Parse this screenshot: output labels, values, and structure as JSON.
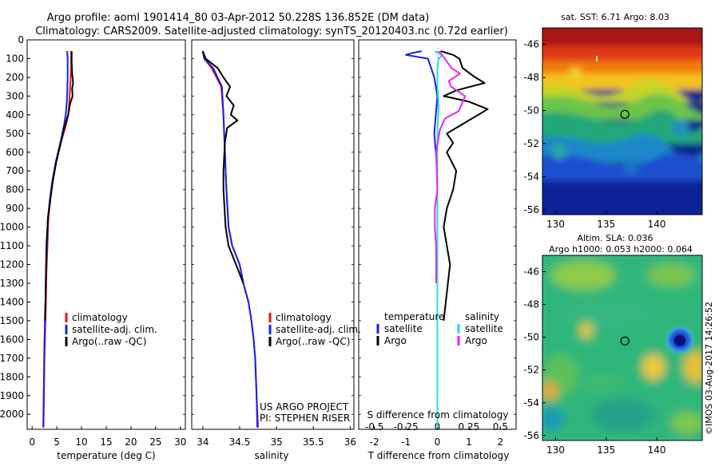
{
  "header": {
    "line1": "Argo profile: aoml 1901414_80 03-Apr-2012 50.228S 136.852E (DM data)",
    "line2": "Climatology: CARS2009. Satellite-adjusted climatology: synTS_20120403.nc (0.72d earlier)"
  },
  "colors": {
    "climatology": "#ee1111",
    "satellite": "#1122ee",
    "argo": "#000000",
    "salinity_satellite": "#22dddd",
    "salinity_argo": "#ee22ee"
  },
  "depth_axis": {
    "range": [
      0,
      2080
    ],
    "ticks": [
      "0",
      "100",
      "200",
      "300",
      "400",
      "500",
      "600",
      "700",
      "800",
      "900",
      "1000",
      "1100",
      "1200",
      "1300",
      "1400",
      "1500",
      "1600",
      "1700",
      "1800",
      "1900",
      "2000"
    ]
  },
  "panels": {
    "temperature": {
      "xlabel": "temperature (deg C)",
      "legend": [
        "climatology",
        "satellite-adj. clim.",
        "Argo(..raw -QC)"
      ]
    },
    "salinity": {
      "xlabel": "salinity",
      "legend": [
        "climatology",
        "satellite-adj. clim.",
        "Argo(..raw -QC)"
      ],
      "credits": [
        "US ARGO PROJECT",
        "PI: STEPHEN RISER"
      ]
    },
    "difference": {
      "legend_titles": [
        "temperature",
        "salinity"
      ],
      "legend_left": [
        "satellite",
        "Argo"
      ],
      "legend_right": [
        "satellite",
        "Argo"
      ],
      "top_axis_label": "S difference from climatology",
      "xlabel": "T difference from climatology"
    }
  },
  "maps": {
    "sst": {
      "title": "sat. SST: 6.71  Argo: 8.03",
      "lat_ticks": [
        "-46",
        "-48",
        "-50",
        "-52",
        "-54",
        "-56"
      ],
      "lon_ticks": [
        "130",
        "135",
        "140"
      ],
      "float_lon": 136.852,
      "float_lat": -50.228
    },
    "sla": {
      "title1": "Altim. SLA: 0.036",
      "title2": "Argo h1000: 0.053 h2000: 0.064",
      "lat_ticks": [
        "-46",
        "-48",
        "-50",
        "-52",
        "-54",
        "-56"
      ],
      "lon_ticks": [
        "130",
        "135",
        "140"
      ],
      "float_lon": 136.852,
      "float_lat": -50.228
    }
  },
  "footer": {
    "stamp": "©IMOS 03-Aug-2017 14:26:52"
  },
  "chart_data": [
    {
      "type": "line",
      "title": "",
      "xlabel": "temperature (deg C)",
      "ylabel": "",
      "xlim": [
        -1,
        31
      ],
      "ylim": [
        2080,
        0
      ],
      "xticks": [
        0,
        5,
        10,
        15,
        20,
        25,
        30
      ],
      "series": [
        {
          "name": "climatology",
          "color": "#ee1111",
          "x": [
            7.9,
            7.9,
            7.8,
            7.6,
            7.3,
            6.9,
            5.8,
            4.9,
            4.2,
            3.7,
            3.3,
            3.1,
            2.9,
            2.8,
            2.7,
            2.6,
            2.5,
            2.45,
            2.4,
            2.35,
            2.3
          ],
          "y": [
            60,
            100,
            200,
            300,
            400,
            450,
            550,
            650,
            750,
            850,
            950,
            1100,
            1250,
            1400,
            1500,
            1600,
            1700,
            1800,
            1900,
            2000,
            2070
          ]
        },
        {
          "name": "satellite-adj. clim.",
          "color": "#1122ee",
          "x": [
            7.1,
            7.2,
            7.2,
            7.1,
            6.8,
            6.5,
            5.7,
            4.8,
            4.1,
            3.6,
            3.2,
            3.0,
            2.8,
            2.7,
            2.6,
            2.5,
            2.45,
            2.4,
            2.35,
            2.3,
            2.25
          ],
          "y": [
            60,
            100,
            200,
            300,
            400,
            450,
            550,
            650,
            750,
            850,
            950,
            1100,
            1250,
            1400,
            1500,
            1600,
            1700,
            1800,
            1900,
            2000,
            2070
          ]
        },
        {
          "name": "Argo(..raw -QC)",
          "color": "#000000",
          "x": [
            8.0,
            8.0,
            8.1,
            8.3,
            8.1,
            8.2,
            7.7,
            7.3,
            6.7,
            5.8,
            4.9,
            4.2,
            3.7,
            3.2,
            2.9,
            2.8,
            2.7,
            2.6
          ],
          "y": [
            60,
            120,
            180,
            230,
            260,
            300,
            340,
            400,
            450,
            550,
            650,
            750,
            850,
            950,
            1100,
            1250,
            1400,
            1500
          ]
        }
      ]
    },
    {
      "type": "line",
      "title": "",
      "xlabel": "salinity",
      "ylabel": "",
      "xlim": [
        33.85,
        36.05
      ],
      "ylim": [
        2080,
        0
      ],
      "xticks": [
        34,
        34.5,
        35,
        35.5,
        36
      ],
      "series": [
        {
          "name": "climatology",
          "color": "#ee1111",
          "x": [
            34.0,
            34.02,
            34.12,
            34.25,
            34.28,
            34.3,
            34.32,
            34.35,
            34.4,
            34.5,
            34.55,
            34.62,
            34.66,
            34.69,
            34.71,
            34.73,
            34.75
          ],
          "y": [
            60,
            100,
            150,
            250,
            400,
            600,
            800,
            1000,
            1100,
            1200,
            1300,
            1400,
            1500,
            1600,
            1700,
            1900,
            2070
          ]
        },
        {
          "name": "satellite-adj. clim.",
          "color": "#1122ee",
          "x": [
            34.0,
            34.02,
            34.14,
            34.26,
            34.28,
            34.3,
            34.32,
            34.35,
            34.4,
            34.5,
            34.55,
            34.62,
            34.66,
            34.69,
            34.71,
            34.73,
            34.74
          ],
          "y": [
            60,
            100,
            150,
            250,
            400,
            600,
            800,
            1000,
            1100,
            1200,
            1300,
            1400,
            1500,
            1600,
            1700,
            1900,
            2070
          ]
        },
        {
          "name": "Argo(..raw -QC)",
          "color": "#000000",
          "x": [
            34.0,
            34.04,
            34.2,
            34.28,
            34.37,
            34.32,
            34.42,
            34.38,
            34.47,
            34.33,
            34.3,
            34.28,
            34.28,
            34.31,
            34.35,
            34.45,
            34.55
          ],
          "y": [
            60,
            100,
            150,
            200,
            250,
            300,
            350,
            400,
            430,
            470,
            550,
            700,
            800,
            1000,
            1100,
            1200,
            1300
          ]
        }
      ]
    },
    {
      "type": "line",
      "title": "",
      "xlabel": "T difference from climatology",
      "ylabel": "",
      "xlim": [
        -2.5,
        2.5
      ],
      "ylim": [
        2080,
        0
      ],
      "xticks": [
        -2,
        -1,
        0,
        1,
        2
      ],
      "top_xlabel": "S difference from climatology",
      "top_xlim": [
        -0.625,
        0.625
      ],
      "top_xticks": [
        -0.5,
        -0.25,
        0,
        0.25,
        0.5
      ],
      "series": [
        {
          "name": "temperature satellite",
          "color": "#1122ee",
          "axis": "T",
          "x": [
            -0.5,
            -0.8,
            -1.0,
            -0.3,
            -0.1,
            0.0,
            -0.1,
            0.0,
            0.0,
            0.0,
            0.0,
            0.0
          ],
          "y": [
            60,
            70,
            80,
            100,
            200,
            300,
            500,
            700,
            900,
            1200,
            1600,
            2070
          ]
        },
        {
          "name": "temperature Argo",
          "color": "#000000",
          "axis": "T",
          "x": [
            0.1,
            0.5,
            0.7,
            0.8,
            1.2,
            1.5,
            0.6,
            0.2,
            1.0,
            1.6,
            1.1,
            0.7,
            0.3,
            0.5,
            0.3,
            0.6,
            0.5,
            0.3,
            0.2,
            0.4,
            0.2
          ],
          "y": [
            60,
            80,
            100,
            150,
            200,
            230,
            270,
            300,
            330,
            370,
            420,
            460,
            500,
            550,
            600,
            700,
            800,
            900,
            1000,
            1200,
            1500
          ]
        },
        {
          "name": "salinity satellite",
          "color": "#22dddd",
          "axis": "S",
          "x": [
            -0.02,
            0.04,
            0.01,
            0.0,
            0.0,
            0.01,
            0.0,
            0.0,
            0.0,
            0.0,
            0.0,
            0.0
          ],
          "y": [
            60,
            80,
            100,
            150,
            250,
            350,
            500,
            700,
            900,
            1200,
            1600,
            2070
          ]
        },
        {
          "name": "salinity Argo",
          "color": "#ee22ee",
          "axis": "S",
          "x": [
            0.01,
            0.06,
            0.11,
            0.18,
            0.09,
            0.11,
            0.22,
            0.17,
            0.06,
            0.02,
            -0.01,
            0.0,
            -0.02,
            -0.02,
            -0.01,
            -0.01,
            -0.01
          ],
          "y": [
            60,
            100,
            150,
            180,
            220,
            250,
            300,
            380,
            420,
            480,
            600,
            800,
            900,
            1000,
            1100,
            1200,
            1300
          ]
        }
      ]
    }
  ]
}
